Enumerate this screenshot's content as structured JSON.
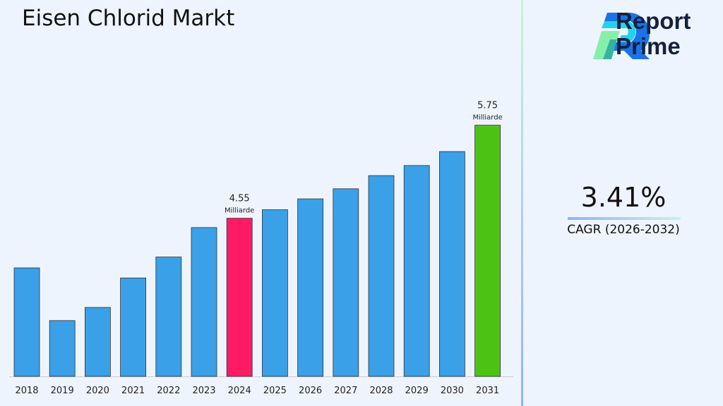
{
  "title": "Eisen Chlorid Markt",
  "logo": {
    "line1": "Report",
    "line2": "Prime"
  },
  "cagr": {
    "value": "3.41%",
    "label": "CAGR (2026-2032)"
  },
  "colors": {
    "default": "#3aa0e8",
    "highlight_2024": "#ff1a66",
    "highlight_2031": "#4cc313",
    "divider": "#8fb2f5"
  },
  "chart_data": {
    "type": "bar",
    "title": "Eisen Chlorid Markt",
    "categories": [
      "2018",
      "2019",
      "2020",
      "2021",
      "2022",
      "2023",
      "2024",
      "2025",
      "2026",
      "2027",
      "2028",
      "2029",
      "2030",
      "2031"
    ],
    "values": [
      3.91,
      3.23,
      3.4,
      3.78,
      4.05,
      4.43,
      4.55,
      4.66,
      4.8,
      4.93,
      5.1,
      5.23,
      5.41,
      5.75
    ],
    "ylim": [
      2.51,
      6.0
    ],
    "grid": false,
    "annotations": [
      {
        "category": "2024",
        "value": "4.55",
        "unit": "Milliarde"
      },
      {
        "category": "2031",
        "value": "5.75",
        "unit": "Milliarde"
      }
    ]
  }
}
